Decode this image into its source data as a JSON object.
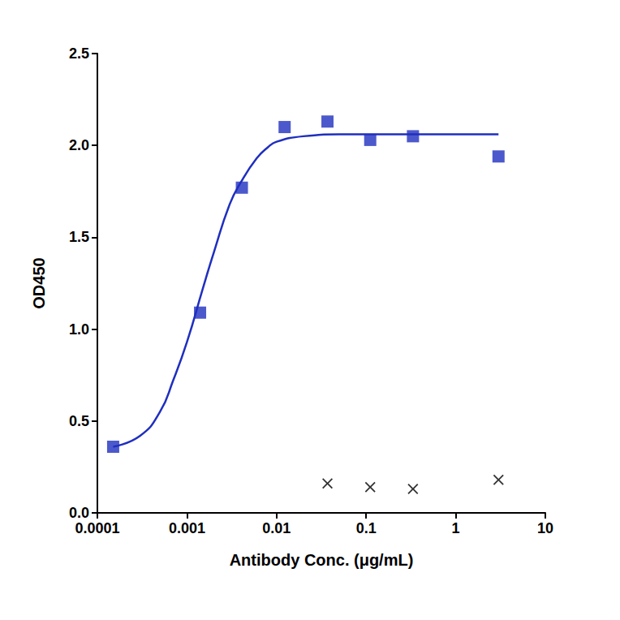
{
  "chart_data": {
    "type": "scatter",
    "x_label": "Antibody Conc. (μg/mL)",
    "y_label": "OD450",
    "log": "x",
    "grid": false,
    "xlim": [
      0.0001,
      10
    ],
    "xticks": [
      0.0001,
      0.001,
      0.01,
      0.1,
      1,
      10
    ],
    "ylim": [
      0,
      2.5
    ],
    "yticks": [
      {
        "value": 0,
        "label": "0.0"
      },
      0.5,
      {
        "value": 1,
        "label": "1.0"
      },
      1.5,
      {
        "value": 2,
        "label": "2.0"
      },
      2.5
    ],
    "series": [
      {
        "type": "line",
        "color": "#1f2fbf",
        "marker": "none",
        "line_style": "solid",
        "x": [
          0.00015,
          0.0003,
          0.0005,
          0.0007,
          0.001,
          0.0015,
          0.002,
          0.003,
          0.004,
          0.006,
          0.008,
          0.01,
          0.02,
          0.05,
          0.1,
          1,
          3
        ],
        "values": [
          0.36,
          0.42,
          0.55,
          0.72,
          0.93,
          1.22,
          1.42,
          1.68,
          1.8,
          1.93,
          1.99,
          2.02,
          2.05,
          2.06,
          2.06,
          2.06,
          2.06
        ]
      },
      {
        "type": "scatter",
        "color": "#1f2fbf",
        "marker": "square",
        "x": [
          0.00015,
          0.0014,
          0.0041,
          0.0123,
          0.037,
          0.111,
          0.333,
          3.0
        ],
        "values": [
          0.36,
          1.09,
          1.77,
          2.1,
          2.13,
          2.03,
          2.05,
          1.94
        ]
      },
      {
        "type": "scatter",
        "color": "#000000",
        "marker": "x",
        "x": [
          0.037,
          0.111,
          0.333,
          3.0
        ],
        "values": [
          0.16,
          0.14,
          0.13,
          0.18
        ]
      }
    ]
  }
}
